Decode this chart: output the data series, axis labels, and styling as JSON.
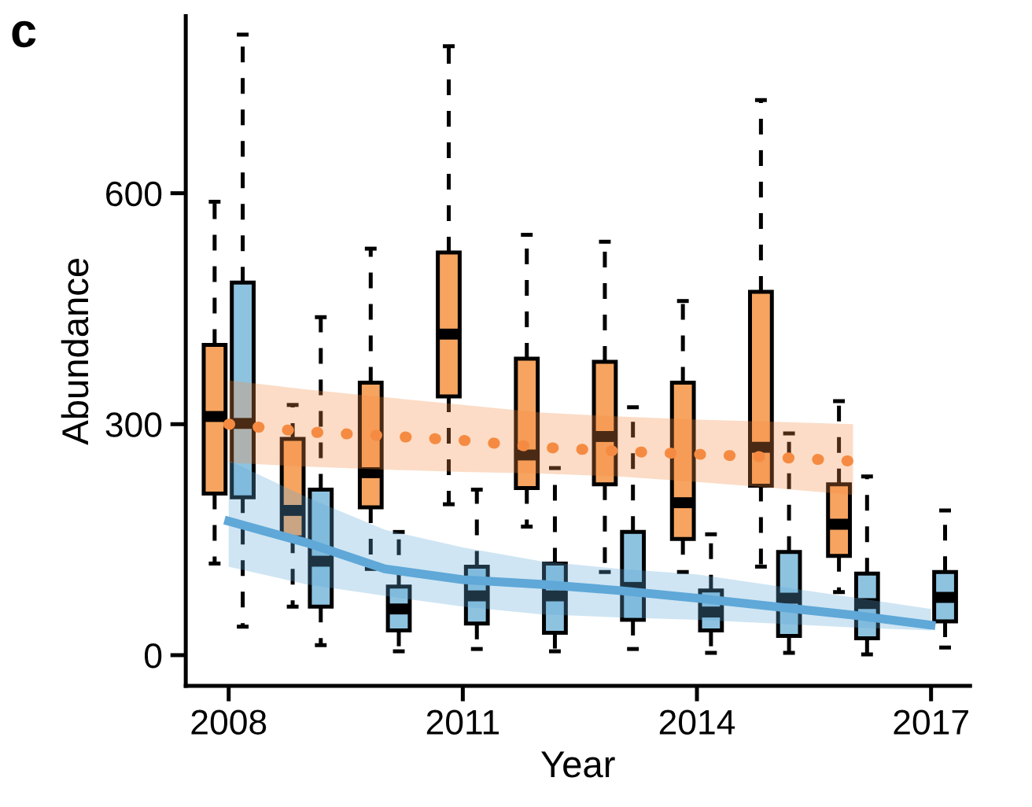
{
  "chart_data": {
    "type": "box",
    "title": "c",
    "xlabel": "Year",
    "ylabel": "Abundance",
    "categories": [
      "2008",
      null,
      null,
      "2011",
      null,
      null,
      "2014",
      null,
      null,
      "2017"
    ],
    "ylim": [
      -40,
      830
    ],
    "yticks": [
      0,
      300,
      600
    ],
    "grid": false,
    "legend": false,
    "series": [
      {
        "color": "#f6a460",
        "boxes": [
          {
            "low": 119,
            "q1": 210,
            "median": 310,
            "q3": 403,
            "high": 589
          },
          {
            "low": 63,
            "q1": 153,
            "median": 188,
            "q3": 281,
            "high": 325
          },
          {
            "low": 112,
            "q1": 192,
            "median": 237,
            "q3": 354,
            "high": 528
          },
          {
            "low": 196,
            "q1": 336,
            "median": 417,
            "q3": 523,
            "high": 791
          },
          {
            "low": 167,
            "q1": 217,
            "median": 260,
            "q3": 385,
            "high": 546
          },
          {
            "low": 108,
            "q1": 222,
            "median": 284,
            "q3": 381,
            "high": 537
          },
          {
            "low": 108,
            "q1": 151,
            "median": 198,
            "q3": 354,
            "high": 460
          },
          {
            "low": 115,
            "q1": 220,
            "median": 270,
            "q3": 472,
            "high": 721
          },
          {
            "low": 82,
            "q1": 129,
            "median": 170,
            "q3": 222,
            "high": 330
          },
          null
        ]
      },
      {
        "color": "#8ec3e0",
        "boxes": [
          {
            "low": 37,
            "q1": 205,
            "median": 301,
            "q3": 484,
            "high": 806
          },
          {
            "low": 13,
            "q1": 63,
            "median": 122,
            "q3": 215,
            "high": 439
          },
          {
            "low": 5,
            "q1": 32,
            "median": 60,
            "q3": 89,
            "high": 160
          },
          {
            "low": 8,
            "q1": 41,
            "median": 77,
            "q3": 115,
            "high": 215
          },
          {
            "low": 5,
            "q1": 29,
            "median": 77,
            "q3": 119,
            "high": 243
          },
          {
            "low": 8,
            "q1": 46,
            "median": 88,
            "q3": 160,
            "high": 322
          },
          {
            "low": 3,
            "q1": 32,
            "median": 56,
            "q3": 84,
            "high": 157
          },
          {
            "low": 3,
            "q1": 25,
            "median": 74,
            "q3": 134,
            "high": 288
          },
          {
            "low": 1,
            "q1": 22,
            "median": 67,
            "q3": 106,
            "high": 232
          },
          {
            "low": 10,
            "q1": 44,
            "median": 75,
            "q3": 108,
            "high": 188
          }
        ]
      },
      {
        "type": "line",
        "color": "#f58b42",
        "line_style": "dotted",
        "values": [
          300,
          290,
          285,
          279,
          270,
          265,
          261,
          257,
          252,
          null
        ],
        "upper": [
          357,
          345,
          335,
          325,
          315,
          310,
          306,
          303,
          300,
          null
        ],
        "lower": [
          250,
          245,
          241,
          238,
          236,
          232,
          225,
          217,
          208,
          null
        ]
      },
      {
        "type": "line",
        "color": "#5fa8d8",
        "line_style": "solid",
        "values": [
          174,
          146,
          112,
          98,
          92,
          84,
          74,
          63,
          52,
          39
        ],
        "upper": [
          253,
          205,
          163,
          140,
          122,
          112,
          105,
          90,
          75,
          60
        ],
        "lower": [
          115,
          92,
          77,
          63,
          53,
          49,
          46,
          41,
          36,
          32
        ]
      }
    ]
  }
}
